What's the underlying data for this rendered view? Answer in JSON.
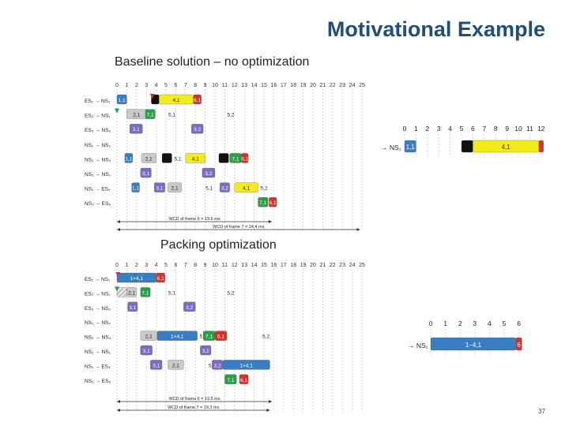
{
  "title": "Motivational Example",
  "slide_number": "37",
  "colors": {
    "blue": "#3a7ec2",
    "gray": "#c9c9c9",
    "green": "#27a048",
    "yellow": "#f3ec1a",
    "red": "#d8312d",
    "purple": "#7c6cbf",
    "black": "#111111",
    "title": "#1f4e79"
  },
  "baseline": {
    "heading": "Baseline solution – no optimization",
    "ticks": [
      "0",
      "1",
      "2",
      "3",
      "4",
      "5",
      "6",
      "7",
      "8",
      "9",
      "10",
      "11",
      "12",
      "13",
      "14",
      "15",
      "16",
      "17",
      "18",
      "19",
      "20",
      "21",
      "22",
      "23",
      "24",
      "25"
    ],
    "rows": [
      {
        "label": "ES₁ → NS₁",
        "bars": [
          {
            "s": 0,
            "e": 1,
            "c": "blue",
            "t": "1,1"
          },
          {
            "s": 3.5,
            "e": 4.3,
            "c": "black",
            "t": ""
          },
          {
            "s": 4.3,
            "e": 7.8,
            "c": "yellow",
            "t": "4,1"
          },
          {
            "s": 7.8,
            "e": 8.6,
            "c": "red",
            "t": "6,1"
          }
        ]
      },
      {
        "label": "ES₂ → NS₁",
        "bars": [
          {
            "s": 1,
            "e": 3,
            "c": "gray",
            "t": "2,1"
          },
          {
            "s": 2.9,
            "e": 3.9,
            "c": "green",
            "t": "7,1"
          },
          {
            "s": 5,
            "e": 5.1,
            "c": "none",
            "t": "5,1"
          },
          {
            "s": 11,
            "e": 11.1,
            "c": "none",
            "t": "5,2"
          }
        ]
      },
      {
        "label": "ES₃ → NS₂",
        "bars": [
          {
            "s": 1.3,
            "e": 2.6,
            "c": "purple",
            "t": "3,1"
          },
          {
            "s": 7.6,
            "e": 8.8,
            "c": "purple",
            "t": "3,2"
          }
        ]
      },
      {
        "label": "NS₁ → NS₂",
        "bars": []
      },
      {
        "label": "NS₂ → NS₃",
        "bars": [
          {
            "s": 0.8,
            "e": 1.6,
            "c": "blue",
            "t": "1,1"
          },
          {
            "s": 2.5,
            "e": 4,
            "c": "gray",
            "t": "2,1"
          },
          {
            "s": 4.6,
            "e": 5.6,
            "c": "black",
            "t": ""
          },
          {
            "s": 5.6,
            "e": 6.3,
            "c": "none",
            "t": "5,1"
          },
          {
            "s": 7,
            "e": 9,
            "c": "yellow",
            "t": "4,1"
          },
          {
            "s": 10.4,
            "e": 11.4,
            "c": "black",
            "t": ""
          },
          {
            "s": 11.5,
            "e": 12.7,
            "c": "green",
            "t": "7,1"
          },
          {
            "s": 12.7,
            "e": 13.4,
            "c": "red",
            "t": "6,1"
          }
        ]
      },
      {
        "label": "NS₃ → NS₁",
        "bars": [
          {
            "s": 2.4,
            "e": 3.5,
            "c": "purple",
            "t": "3,1"
          },
          {
            "s": 8.7,
            "e": 10,
            "c": "purple",
            "t": "3,2"
          }
        ]
      },
      {
        "label": "NS₁ → ES₄",
        "bars": [
          {
            "s": 1.5,
            "e": 2.3,
            "c": "blue",
            "t": "1,1"
          },
          {
            "s": 3.8,
            "e": 4.9,
            "c": "purple",
            "t": "3,1"
          },
          {
            "s": 5.2,
            "e": 6.6,
            "c": "gray",
            "t": "2,1"
          },
          {
            "s": 8.8,
            "e": 9.6,
            "c": "none",
            "t": "5,1"
          },
          {
            "s": 10.5,
            "e": 11.5,
            "c": "purple",
            "t": "3,2"
          },
          {
            "s": 12,
            "e": 14.4,
            "c": "yellow",
            "t": "4,1"
          },
          {
            "s": 14.4,
            "e": 15,
            "c": "none",
            "t": "5,2"
          }
        ]
      },
      {
        "label": "NS₃ → ES₅",
        "bars": [
          {
            "s": 14.4,
            "e": 15.4,
            "c": "green",
            "t": "7,1"
          },
          {
            "s": 15.5,
            "e": 16.3,
            "c": "red",
            "t": "6,1"
          }
        ]
      }
    ],
    "wcd6": "WCD of frame 6 = 19.6 ms",
    "wcd7": "WCD of frame 7 = 24.4 ms"
  },
  "packing": {
    "heading": "Packing optimization",
    "ticks": [
      "0",
      "1",
      "2",
      "3",
      "4",
      "5",
      "6",
      "7",
      "8",
      "9",
      "10",
      "11",
      "12",
      "13",
      "14",
      "15",
      "16",
      "17",
      "18",
      "19",
      "20",
      "21",
      "22",
      "23",
      "24",
      "25"
    ],
    "rows": [
      {
        "label": "ES₁ → NS₁",
        "bars": [
          {
            "s": 0,
            "e": 4,
            "c": "blue",
            "t": "1+4,1"
          },
          {
            "s": 4,
            "e": 4.9,
            "c": "red",
            "t": "6,1"
          }
        ]
      },
      {
        "label": "ES₂ → NS₁",
        "bars": [
          {
            "s": 0,
            "e": 1,
            "c": "hatch",
            "t": ""
          },
          {
            "s": 1,
            "e": 2,
            "c": "gray",
            "t": "2,1"
          },
          {
            "s": 2.4,
            "e": 3.4,
            "c": "green",
            "t": "7,1"
          },
          {
            "s": 5,
            "e": 5.1,
            "c": "none",
            "t": "5,1"
          },
          {
            "s": 11,
            "e": 11.1,
            "c": "none",
            "t": "5,2"
          }
        ]
      },
      {
        "label": "ES₃ → NS₂",
        "bars": [
          {
            "s": 1.1,
            "e": 2.1,
            "c": "purple",
            "t": "3,1"
          },
          {
            "s": 6.8,
            "e": 8,
            "c": "purple",
            "t": "3,2"
          }
        ]
      },
      {
        "label": "NS₁ → NS₂",
        "bars": []
      },
      {
        "label": "NS₂ → NS₃",
        "bars": [
          {
            "s": 2.4,
            "e": 4.1,
            "c": "gray",
            "t": "2,1"
          },
          {
            "s": 4.1,
            "e": 8.2,
            "c": "blue",
            "t": "1+4,1"
          },
          {
            "s": 8.2,
            "e": 8.8,
            "c": "none",
            "t": "5,1"
          },
          {
            "s": 8.8,
            "e": 10,
            "c": "green",
            "t": "7,1"
          },
          {
            "s": 10,
            "e": 11.2,
            "c": "red",
            "t": "6,1"
          },
          {
            "s": 14.6,
            "e": 15,
            "c": "none",
            "t": "5,2"
          }
        ]
      },
      {
        "label": "NS₂ → NS₁",
        "bars": [
          {
            "s": 2.4,
            "e": 3.6,
            "c": "purple",
            "t": "3,1"
          },
          {
            "s": 8.5,
            "e": 9.6,
            "c": "purple",
            "t": "3,2"
          }
        ]
      },
      {
        "label": "NS₁ → ES₄",
        "bars": [
          {
            "s": 3.4,
            "e": 4.6,
            "c": "purple",
            "t": "3,1"
          },
          {
            "s": 5.2,
            "e": 6.8,
            "c": "gray",
            "t": "2,1"
          },
          {
            "s": 9.1,
            "e": 9.7,
            "c": "none",
            "t": "5,1"
          },
          {
            "s": 9.7,
            "e": 10.8,
            "c": "purple",
            "t": "3,2"
          },
          {
            "s": 10.8,
            "e": 15.6,
            "c": "blue",
            "t": "1+4,1"
          }
        ]
      },
      {
        "label": "NS₃ → ES₅",
        "bars": [
          {
            "s": 11,
            "e": 12.2,
            "c": "green",
            "t": "7,1"
          },
          {
            "s": 12.5,
            "e": 13.4,
            "c": "red",
            "t": "6,1"
          }
        ]
      }
    ],
    "wcd6": "WCD of frame 6 = 19.5 ms",
    "wcd7": "WCD of frame 7 = 19.3 ms"
  },
  "zoom1": {
    "ticks": [
      "0",
      "1",
      "2",
      "3",
      "4",
      "5",
      "6",
      "7",
      "8",
      "9",
      "10",
      "11",
      "12"
    ],
    "label": "→ NS₁",
    "bars": [
      {
        "s": 0,
        "e": 1,
        "c": "blue",
        "t": "1,1"
      },
      {
        "s": 5,
        "e": 6,
        "c": "black",
        "t": ""
      },
      {
        "s": 6,
        "e": 11.8,
        "c": "yellow",
        "t": "4,1"
      },
      {
        "s": 11.8,
        "e": 12.2,
        "c": "red",
        "t": ""
      }
    ]
  },
  "zoom2": {
    "ticks": [
      "0",
      "1",
      "2",
      "3",
      "4",
      "5",
      "6"
    ],
    "label": "→ NS₁",
    "bars": [
      {
        "s": 0,
        "e": 5.8,
        "c": "blue",
        "t": "1−4,1"
      },
      {
        "s": 5.8,
        "e": 6.2,
        "c": "red",
        "t": "6"
      }
    ]
  }
}
